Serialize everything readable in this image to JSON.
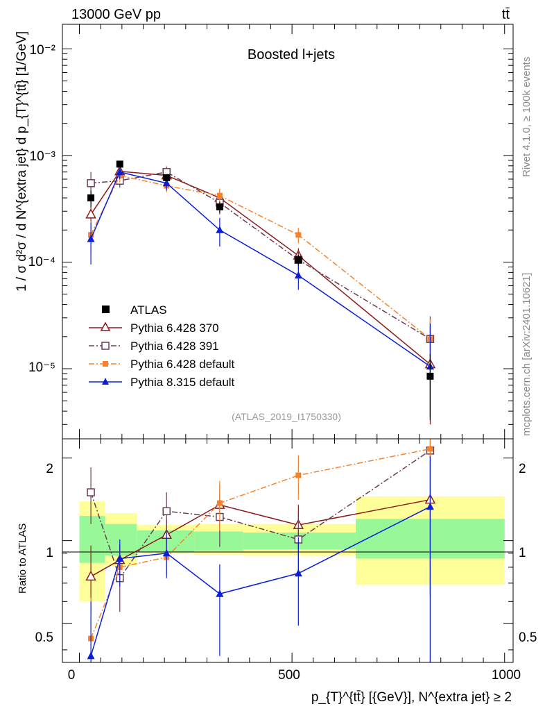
{
  "header": {
    "left_label": "13000 GeV pp",
    "right_label": "tt̄"
  },
  "side_labels": {
    "rivet": "Rivet 4.1.0, ≥ 100k events",
    "mcplots": "mcplots.cern.ch [arXiv:2401.10621]"
  },
  "main_panel": {
    "title": "Boosted l+jets",
    "watermark": "(ATLAS_2019_I1750330)",
    "ylabel": "1 / σ d²σ / d N^{extra jet} d p_{T}^{tt̄} [1/GeV]",
    "ytick_labels": [
      "10⁻²",
      "10⁻³",
      "10⁻⁴",
      "10⁻⁵"
    ]
  },
  "ratio_panel": {
    "ylabel": "Ratio to ATLAS",
    "ytick_labels": [
      "2",
      "1",
      "0.5"
    ]
  },
  "x_axis": {
    "label": "p_{T}^{tt̄} [{GeV}], N^{extra jet} ≥ 2",
    "tick_labels": [
      "0",
      "500",
      "1000"
    ]
  },
  "colors": {
    "atlas": "#000000",
    "py370": "#8b1a1a",
    "py391": "#6b3a55",
    "py6def": "#f5822a",
    "py8def": "#0a1ed6",
    "band_inner": "#98f898",
    "band_outer": "#ffff99"
  },
  "chart_data": {
    "type": "scatter",
    "xlim": [
      -40,
      1020
    ],
    "ylim_main": [
      2.2e-06,
      0.017
    ],
    "ylim_ratio": [
      0.36,
      2.35
    ],
    "y_scale": "log",
    "bins": [
      [
        0,
        60
      ],
      [
        60,
        135
      ],
      [
        135,
        270
      ],
      [
        270,
        385
      ],
      [
        385,
        650
      ],
      [
        650,
        1000
      ]
    ],
    "band_inner": [
      [
        0.83,
        1.23
      ],
      [
        0.88,
        1.15
      ],
      [
        0.91,
        1.09
      ],
      [
        0.92,
        1.08
      ],
      [
        0.93,
        1.07
      ],
      [
        0.86,
        1.2
      ]
    ],
    "band_outer": [
      [
        0.6,
        1.39
      ],
      [
        0.81,
        1.26
      ],
      [
        0.9,
        1.14
      ],
      [
        0.89,
        1.15
      ],
      [
        0.88,
        1.15
      ],
      [
        0.69,
        1.45
      ]
    ],
    "series": [
      {
        "name": "ATLAS",
        "key": "atlas",
        "style": "solid",
        "marker": "square-filled",
        "x": [
          27,
          95,
          205,
          330,
          515,
          825
        ],
        "y": [
          0.0004,
          0.00083,
          0.00062,
          0.00033,
          0.000105,
          8.5e-06
        ],
        "yerr": [
          [
            7e-05,
            7e-05
          ],
          [
            5e-05,
            5e-05
          ],
          [
            4e-05,
            4e-05
          ],
          [
            4e-05,
            4e-05
          ],
          [
            1.2e-05,
            1.2e-05
          ],
          [
            5.2e-06,
            5.2e-06
          ]
        ],
        "ratio": null,
        "ratio_err": null
      },
      {
        "name": "Pythia 6.428 370",
        "key": "py370",
        "style": "solid",
        "marker": "triangle-open",
        "x": [
          27,
          95,
          205,
          330,
          515,
          825
        ],
        "y": [
          0.00028,
          0.00071,
          0.00065,
          0.0004,
          0.000115,
          1.1e-05
        ],
        "yerr": [
          [
            9e-05,
            0.0001
          ],
          [
            0.00011,
            0.00011
          ],
          [
            8e-05,
            8e-05
          ],
          [
            8e-05,
            8e-05
          ],
          [
            2e-05,
            2e-05
          ],
          [
            8e-06,
            1.6e-05
          ]
        ],
        "ratio": [
          0.74,
          0.85,
          1.05,
          1.35,
          1.14,
          1.41
        ],
        "ratio_err": [
          [
            0.2,
            0.22
          ],
          [
            0.12,
            0.12
          ],
          [
            0.14,
            0.14
          ],
          [
            0.25,
            0.25
          ],
          [
            0.21,
            0.21
          ],
          [
            1.1,
            0.7
          ]
        ]
      },
      {
        "name": "Pythia 6.428 391",
        "key": "py391",
        "style": "dashdot",
        "marker": "square-open",
        "x": [
          27,
          95,
          205,
          330,
          515,
          825
        ],
        "y": [
          0.00055,
          0.00058,
          0.0007,
          0.00036,
          0.000105,
          1.9e-05
        ],
        "yerr": [
          [
            0.00015,
            0.00015
          ],
          [
            8e-05,
            8e-05
          ],
          [
            9e-05,
            9e-05
          ],
          [
            8e-05,
            8e-05
          ],
          [
            2e-05,
            2e-05
          ],
          [
            1.2e-05,
            1.2e-05
          ]
        ],
        "ratio": [
          1.5,
          0.73,
          1.28,
          1.22,
          1.01,
          2.13
        ],
        "ratio_err": [
          [
            0.35,
            0.35
          ],
          [
            0.18,
            0.18
          ],
          [
            0.22,
            0.22
          ],
          [
            0.27,
            0.27
          ],
          [
            0.25,
            0.25
          ],
          [
            1.5,
            0.2
          ]
        ]
      },
      {
        "name": "Pythia 6.428 default",
        "key": "py6def",
        "style": "dashdot",
        "marker": "square-filled",
        "x": [
          27,
          95,
          205,
          330,
          515,
          825
        ],
        "y": [
          0.00018,
          0.00065,
          0.00052,
          0.00042,
          0.00018,
          1.9e-05
        ],
        "yerr": [
          [
            6e-05,
            6e-05
          ],
          [
            9e-05,
            9e-05
          ],
          [
            7e-05,
            7e-05
          ],
          [
            7e-05,
            7e-05
          ],
          [
            3e-05,
            3e-05
          ],
          [
            1e-05,
            1e-05
          ]
        ],
        "ratio": [
          0.44,
          0.8,
          0.87,
          1.37,
          1.73,
          2.16
        ],
        "ratio_err": [
          [
            0.18,
            0.18
          ],
          [
            0.12,
            0.12
          ],
          [
            0.12,
            0.12
          ],
          [
            0.28,
            0.28
          ],
          [
            0.32,
            0.32
          ],
          [
            1.5,
            0.2
          ]
        ]
      },
      {
        "name": "Pythia 8.315 default",
        "key": "py8def",
        "style": "solid",
        "marker": "triangle-filled",
        "x": [
          27,
          95,
          205,
          330,
          515,
          825
        ],
        "y": [
          0.000165,
          0.0007,
          0.00055,
          0.0002,
          7.5e-05,
          1.05e-05
        ],
        "yerr": [
          [
            7e-05,
            7e-05
          ],
          [
            0.0001,
            0.0001
          ],
          [
            8e-05,
            8e-05
          ],
          [
            6e-05,
            6e-05
          ],
          [
            2e-05,
            2e-05
          ],
          [
            7e-06,
            1.6e-05
          ]
        ],
        "ratio": [
          0.38,
          0.86,
          0.9,
          0.64,
          0.76,
          1.33
        ],
        "ratio_err": [
          [
            0.15,
            0.22
          ],
          [
            0.18,
            0.15
          ],
          [
            0.17,
            0.17
          ],
          [
            0.26,
            0.18
          ],
          [
            0.27,
            0.27
          ],
          [
            1.0,
            0.7
          ]
        ]
      }
    ]
  }
}
